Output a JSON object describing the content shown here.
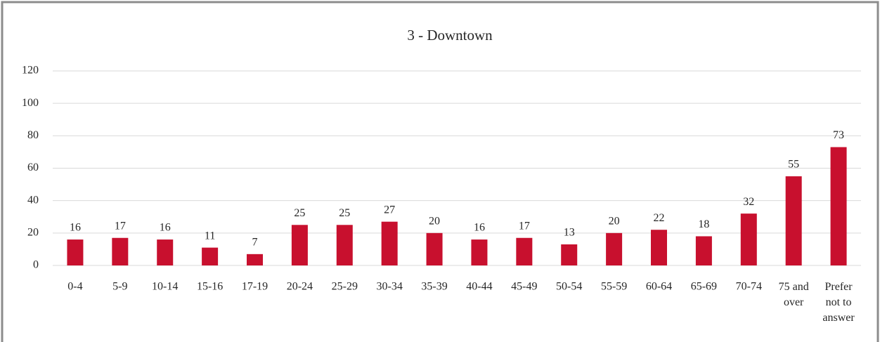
{
  "chart_data": {
    "type": "bar",
    "title": "3 - Downtown",
    "categories": [
      "0-4",
      "5-9",
      "10-14",
      "15-16",
      "17-19",
      "20-24",
      "25-29",
      "30-34",
      "35-39",
      "40-44",
      "45-49",
      "50-54",
      "55-59",
      "60-64",
      "65-69",
      "70-74",
      "75 and over",
      "Prefer not to answer"
    ],
    "values": [
      16,
      17,
      16,
      11,
      7,
      25,
      25,
      27,
      20,
      16,
      17,
      13,
      20,
      22,
      18,
      32,
      55,
      73
    ],
    "color": "#c8102e",
    "ylim": [
      0,
      120
    ],
    "yticks": [
      0,
      20,
      40,
      60,
      80,
      100,
      120
    ],
    "grid": true
  }
}
